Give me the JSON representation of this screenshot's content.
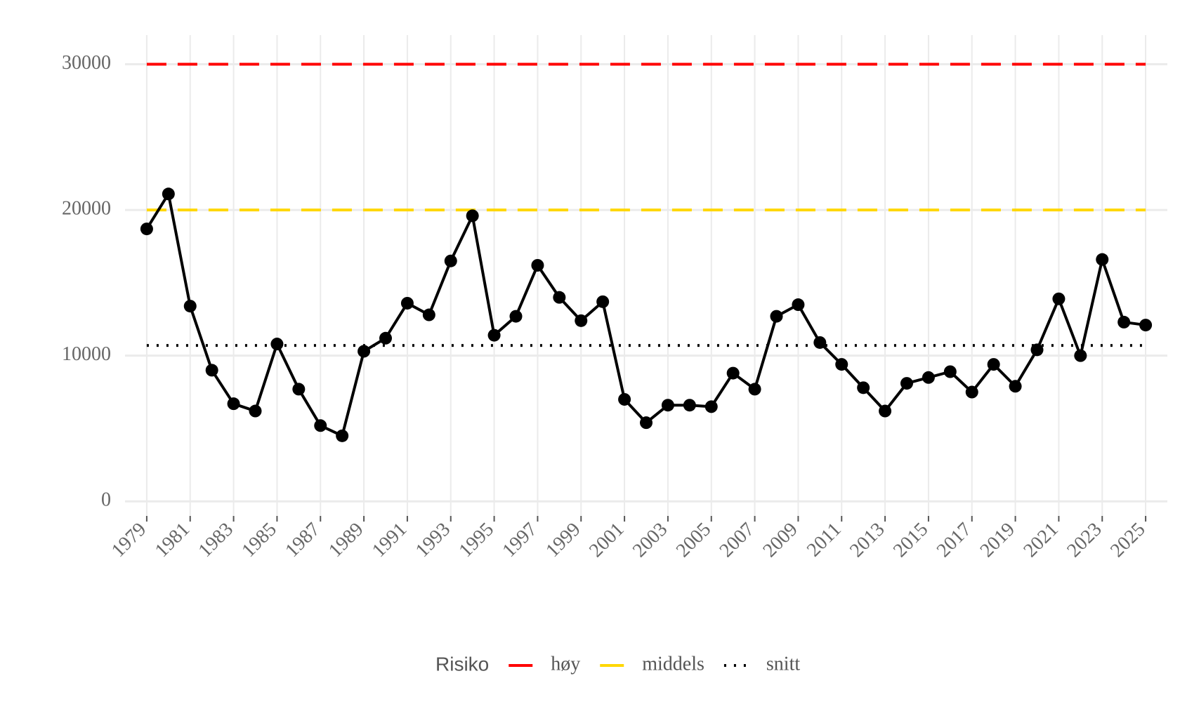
{
  "chart_data": {
    "type": "line",
    "x": [
      1979,
      1980,
      1981,
      1982,
      1983,
      1984,
      1985,
      1986,
      1987,
      1988,
      1989,
      1990,
      1991,
      1992,
      1993,
      1994,
      1995,
      1996,
      1997,
      1998,
      1999,
      2000,
      2001,
      2002,
      2003,
      2004,
      2005,
      2006,
      2007,
      2008,
      2009,
      2010,
      2011,
      2012,
      2013,
      2014,
      2015,
      2016,
      2017,
      2018,
      2019,
      2020,
      2021,
      2022,
      2023,
      2024,
      2025
    ],
    "values": [
      18700,
      21100,
      13400,
      9000,
      6700,
      6200,
      10800,
      7700,
      5200,
      4500,
      10300,
      11200,
      13600,
      12800,
      16500,
      19600,
      11400,
      12700,
      16200,
      14000,
      12400,
      13700,
      7000,
      5400,
      6600,
      6600,
      6500,
      8800,
      7700,
      12700,
      13500,
      10900,
      9400,
      7800,
      6200,
      8100,
      8500,
      8900,
      7500,
      9400,
      7900,
      10400,
      13900,
      10000,
      16600,
      12300,
      12100
    ],
    "color": "#000000",
    "reference_lines": [
      {
        "name": "høy",
        "value": 30000,
        "color": "#ff0000",
        "style": "dashed"
      },
      {
        "name": "middels",
        "value": 20000,
        "color": "#ffd700",
        "style": "dashed"
      },
      {
        "name": "snitt",
        "value": 10700,
        "color": "#000000",
        "style": "dotted"
      }
    ],
    "legend_title": "Risiko",
    "xlim": [
      1978,
      2026
    ],
    "xticks": [
      1979,
      1981,
      1983,
      1985,
      1987,
      1989,
      1991,
      1993,
      1995,
      1997,
      1999,
      2001,
      2003,
      2005,
      2007,
      2009,
      2011,
      2013,
      2015,
      2017,
      2019,
      2021,
      2023,
      2025
    ],
    "ylim": [
      -1000,
      32000
    ],
    "yticks": [
      0,
      10000,
      20000,
      30000
    ],
    "grid": true
  }
}
